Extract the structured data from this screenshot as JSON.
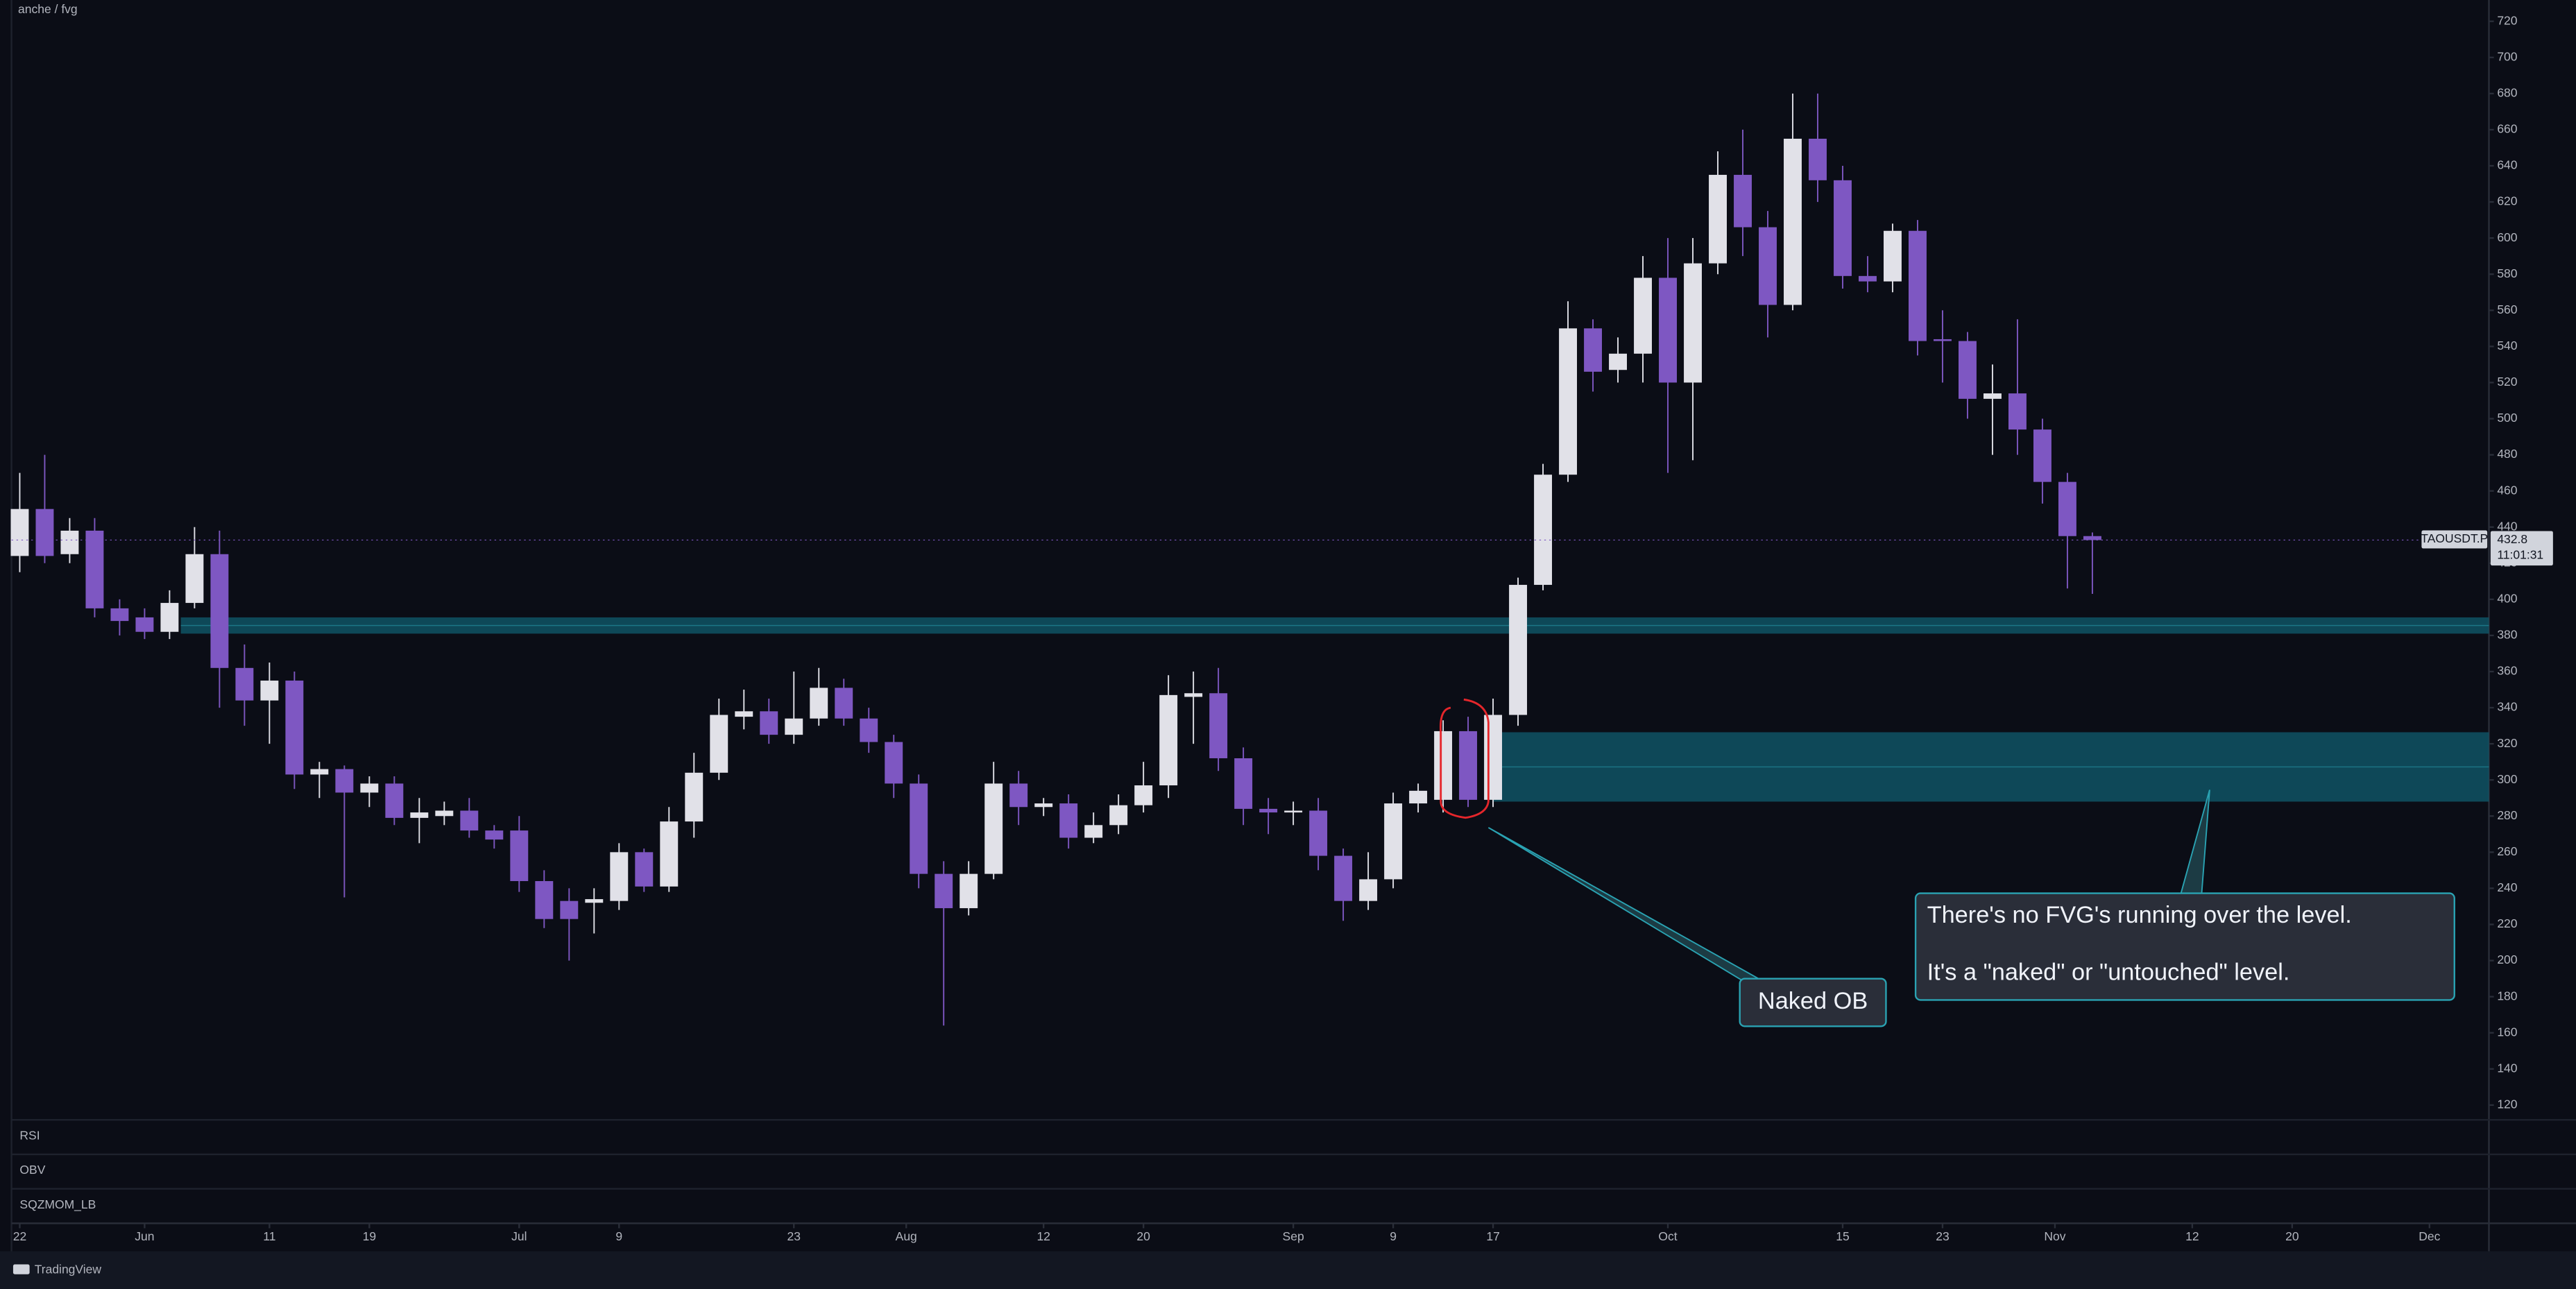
{
  "chart_data": {
    "type": "candlestick",
    "workspace": "anche / fvg",
    "symbol": "TAOUSDT.P",
    "last_price": 432.8,
    "countdown": "11:01:31",
    "panes": [
      "RSI",
      "OBV",
      "SQZMOM_LB"
    ],
    "brand": "TradingView",
    "up_color": "#e1e1e8",
    "down_color": "#7e57c2",
    "grid": false,
    "ylim": [
      111.8,
      731.8
    ],
    "yticks": [
      120,
      140,
      160,
      180,
      200,
      220,
      240,
      260,
      280,
      300,
      320,
      340,
      360,
      380,
      400,
      420,
      440,
      460,
      480,
      500,
      520,
      540,
      560,
      580,
      600,
      620,
      640,
      660,
      680,
      700,
      720
    ],
    "xlim": [
      -0.66,
      197.76
    ],
    "xticks": [
      {
        "value": 0,
        "label": "22"
      },
      {
        "value": 10,
        "label": "Jun"
      },
      {
        "value": 20,
        "label": "11"
      },
      {
        "value": 28,
        "label": "19"
      },
      {
        "value": 40,
        "label": "Jul"
      },
      {
        "value": 48,
        "label": "9"
      },
      {
        "value": 62,
        "label": "23"
      },
      {
        "value": 71,
        "label": "Aug"
      },
      {
        "value": 82,
        "label": "12"
      },
      {
        "value": 90,
        "label": "20"
      },
      {
        "value": 102,
        "label": "Sep"
      },
      {
        "value": 110,
        "label": "9"
      },
      {
        "value": 118,
        "label": "17"
      },
      {
        "value": 132,
        "label": "Oct"
      },
      {
        "value": 146,
        "label": "15"
      },
      {
        "value": 154,
        "label": "23"
      },
      {
        "value": 163,
        "label": "Nov"
      },
      {
        "value": 174,
        "label": "12"
      },
      {
        "value": 182,
        "label": "20"
      },
      {
        "value": 193,
        "label": "Dec"
      }
    ],
    "candles": {
      "x": [
        0,
        2,
        4,
        6,
        8,
        10,
        12,
        14,
        16,
        18,
        20,
        22,
        24,
        26,
        28,
        30,
        32,
        34,
        36,
        38,
        40,
        42,
        44,
        46,
        48,
        50,
        52,
        54,
        56,
        58,
        60,
        62,
        64,
        66,
        68,
        70,
        72,
        74,
        76,
        78,
        80,
        82,
        84,
        86,
        88,
        90,
        92,
        94,
        96,
        98,
        100,
        102,
        104,
        106,
        108,
        110,
        112,
        114,
        116,
        118,
        120,
        122,
        124,
        126,
        128,
        130,
        132,
        134,
        136,
        138,
        140,
        142,
        144,
        146,
        148,
        150,
        152,
        154,
        156,
        158,
        160,
        162,
        164,
        166
      ],
      "open": [
        424,
        450,
        425,
        438,
        395,
        390,
        382,
        398,
        425,
        362,
        344,
        355,
        303,
        306,
        293,
        298,
        279,
        280,
        283,
        272,
        272,
        244,
        233,
        232,
        233,
        260,
        241,
        277,
        304,
        335,
        338,
        325,
        334,
        351,
        334,
        321,
        298,
        248,
        229,
        248,
        298,
        285,
        287,
        268,
        275,
        286,
        297,
        346,
        348,
        312,
        284,
        282,
        283,
        258,
        233,
        245,
        287,
        289,
        327,
        289,
        336,
        408,
        469,
        550,
        527,
        536,
        578,
        520,
        586,
        635,
        606,
        563,
        655,
        632,
        579,
        576,
        604,
        544,
        543,
        511,
        514,
        494,
        465,
        435
      ],
      "high": [
        470,
        480,
        445,
        445,
        400,
        395,
        405,
        440,
        438,
        375,
        365,
        360,
        310,
        308,
        302,
        302,
        290,
        288,
        290,
        275,
        280,
        250,
        240,
        240,
        265,
        262,
        285,
        315,
        345,
        350,
        345,
        360,
        362,
        356,
        340,
        325,
        303,
        255,
        255,
        310,
        305,
        290,
        292,
        282,
        292,
        310,
        358,
        360,
        362,
        318,
        290,
        288,
        290,
        262,
        260,
        293,
        298,
        333,
        335,
        345,
        412,
        475,
        565,
        555,
        545,
        590,
        600,
        600,
        648,
        660,
        615,
        680,
        680,
        640,
        590,
        608,
        610,
        560,
        548,
        530,
        555,
        500,
        470,
        437
      ],
      "low": [
        415,
        420,
        420,
        390,
        380,
        378,
        378,
        395,
        340,
        330,
        320,
        295,
        290,
        235,
        285,
        275,
        265,
        275,
        268,
        262,
        238,
        218,
        200,
        215,
        228,
        238,
        238,
        268,
        300,
        328,
        320,
        320,
        330,
        330,
        315,
        290,
        240,
        164,
        225,
        245,
        275,
        280,
        262,
        265,
        270,
        282,
        290,
        320,
        305,
        275,
        270,
        275,
        250,
        222,
        228,
        240,
        282,
        282,
        285,
        285,
        330,
        405,
        465,
        515,
        520,
        520,
        470,
        477,
        580,
        590,
        545,
        560,
        620,
        572,
        570,
        570,
        535,
        520,
        500,
        480,
        480,
        453,
        406,
        403
      ],
      "close": [
        450,
        424,
        438,
        395,
        388,
        382,
        398,
        425,
        362,
        344,
        355,
        303,
        306,
        293,
        298,
        279,
        282,
        283,
        272,
        267,
        244,
        223,
        223,
        234,
        260,
        241,
        277,
        304,
        336,
        338,
        325,
        334,
        351,
        334,
        321,
        298,
        248,
        229,
        248,
        298,
        285,
        287,
        268,
        275,
        286,
        297,
        347,
        348,
        312,
        284,
        282,
        283,
        258,
        233,
        245,
        287,
        294,
        327,
        289,
        336,
        408,
        469,
        550,
        526,
        536,
        578,
        520,
        586,
        635,
        606,
        563,
        655,
        632,
        579,
        576,
        604,
        543,
        543,
        511,
        514,
        494,
        465,
        435,
        432.8
      ]
    },
    "zones": [
      {
        "start": 12.9,
        "top": 390,
        "bottom": 381,
        "color": "#0f5a6b"
      },
      {
        "start": 118,
        "top": 326.4,
        "bottom": 288,
        "color": "#0f5a6b"
      }
    ],
    "annotations": [
      {
        "text": "Naked OB"
      },
      {
        "lines": [
          "There's no FVG's running over the level.",
          "It's a \"naked\" or \"untouched\" level."
        ]
      }
    ]
  }
}
